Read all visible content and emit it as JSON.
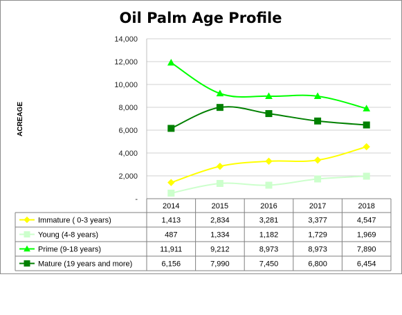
{
  "chart_data": {
    "type": "line",
    "title": "Oil Palm Age Profile",
    "ylabel": "ACREAGE",
    "xlabel": "",
    "ylim": [
      0,
      14000
    ],
    "yticks": [
      0,
      2000,
      4000,
      6000,
      8000,
      10000,
      12000,
      14000
    ],
    "ytick_labels": [
      "-",
      "2,000",
      "4,000",
      "6,000",
      "8,000",
      "10,000",
      "12,000",
      "14,000"
    ],
    "grid": true,
    "legend_placement": "data-table",
    "categories": [
      "2014",
      "2015",
      "2016",
      "2017",
      "2018"
    ],
    "series": [
      {
        "name": "Immature ( 0-3 years)",
        "color": "#ffff00",
        "marker": "diamond",
        "values": [
          1413,
          2834,
          3281,
          3377,
          4547
        ],
        "labels": [
          "1,413",
          "2,834",
          "3,281",
          "3,377",
          "4,547"
        ]
      },
      {
        "name": "Young (4-8 years)",
        "color": "#ccffcc",
        "marker": "square",
        "values": [
          487,
          1334,
          1182,
          1729,
          1969
        ],
        "labels": [
          "487",
          "1,334",
          "1,182",
          "1,729",
          "1,969"
        ]
      },
      {
        "name": "Prime (9-18 years)",
        "color": "#00ff00",
        "marker": "triangle",
        "values": [
          11911,
          9212,
          8973,
          8973,
          7890
        ],
        "labels": [
          "11,911",
          "9,212",
          "8,973",
          "8,973",
          "7,890"
        ]
      },
      {
        "name": "Mature (19 years and more)",
        "color": "#008000",
        "marker": "square",
        "values": [
          6156,
          7990,
          7450,
          6800,
          6454
        ],
        "labels": [
          "6,156",
          "7,990",
          "7,450",
          "6,800",
          "6,454"
        ]
      }
    ]
  }
}
